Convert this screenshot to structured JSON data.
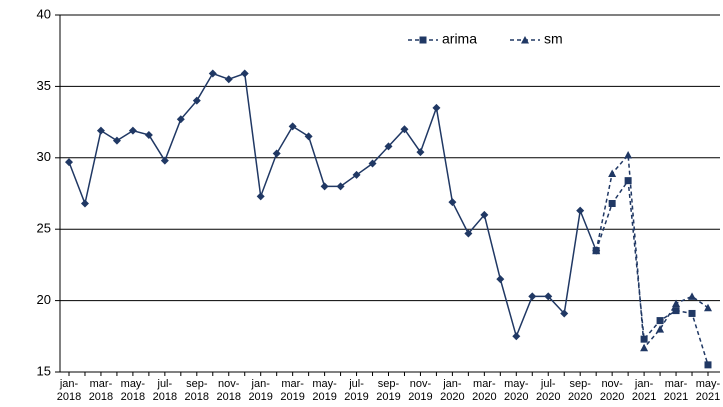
{
  "chart_data": {
    "type": "line",
    "categories": [
      "jan-\n2018",
      null,
      "mar-\n2018",
      null,
      "may-\n2018",
      null,
      "jul-\n2018",
      null,
      "sep-\n2018",
      null,
      "nov-\n2018",
      null,
      "jan-\n2019",
      null,
      "mar-\n2019",
      null,
      "may-\n2019",
      null,
      "jul-\n2019",
      null,
      "sep-\n2019",
      null,
      "nov-\n2019",
      null,
      "jan-\n2020",
      null,
      "mar-\n2020",
      null,
      "may-\n2020",
      null,
      "jul-\n2020",
      null,
      "sep-\n2020",
      null,
      "nov-\n2020",
      null,
      "jan-\n2021",
      null,
      "mar-\n2021",
      null,
      "may-\n2021"
    ],
    "series": [
      {
        "color": "#203864",
        "marker": "diamond",
        "linestyle": "solid",
        "values": [
          29.7,
          26.8,
          31.9,
          31.2,
          31.9,
          31.6,
          29.8,
          32.7,
          34.0,
          35.9,
          35.5,
          35.9,
          27.3,
          30.3,
          32.2,
          31.5,
          28.0,
          28.0,
          28.8,
          29.6,
          30.8,
          32.0,
          30.4,
          33.5,
          26.9,
          24.7,
          26.0,
          21.5,
          17.5,
          20.3,
          20.3,
          19.1,
          26.3,
          23.5,
          null,
          null,
          null,
          null,
          null,
          null,
          null
        ]
      },
      {
        "name": "arima",
        "color": "#203864",
        "marker": "square",
        "linestyle": "dashed",
        "values": [
          null,
          null,
          null,
          null,
          null,
          null,
          null,
          null,
          null,
          null,
          null,
          null,
          null,
          null,
          null,
          null,
          null,
          null,
          null,
          null,
          null,
          null,
          null,
          null,
          null,
          null,
          null,
          null,
          null,
          null,
          null,
          null,
          null,
          23.5,
          26.8,
          28.4,
          17.3,
          18.6,
          19.3,
          19.1,
          15.5
        ]
      },
      {
        "name": "sm",
        "color": "#203864",
        "marker": "triangle",
        "linestyle": "dashed",
        "values": [
          null,
          null,
          null,
          null,
          null,
          null,
          null,
          null,
          null,
          null,
          null,
          null,
          null,
          null,
          null,
          null,
          null,
          null,
          null,
          null,
          null,
          null,
          null,
          null,
          null,
          null,
          null,
          null,
          null,
          null,
          null,
          null,
          null,
          23.5,
          28.9,
          30.2,
          16.7,
          18.0,
          19.8,
          20.3,
          19.5
        ]
      }
    ],
    "ylim": [
      15,
      40
    ],
    "yticks": [
      15,
      20,
      25,
      30,
      35,
      40
    ],
    "grid": true,
    "legend": "top"
  }
}
